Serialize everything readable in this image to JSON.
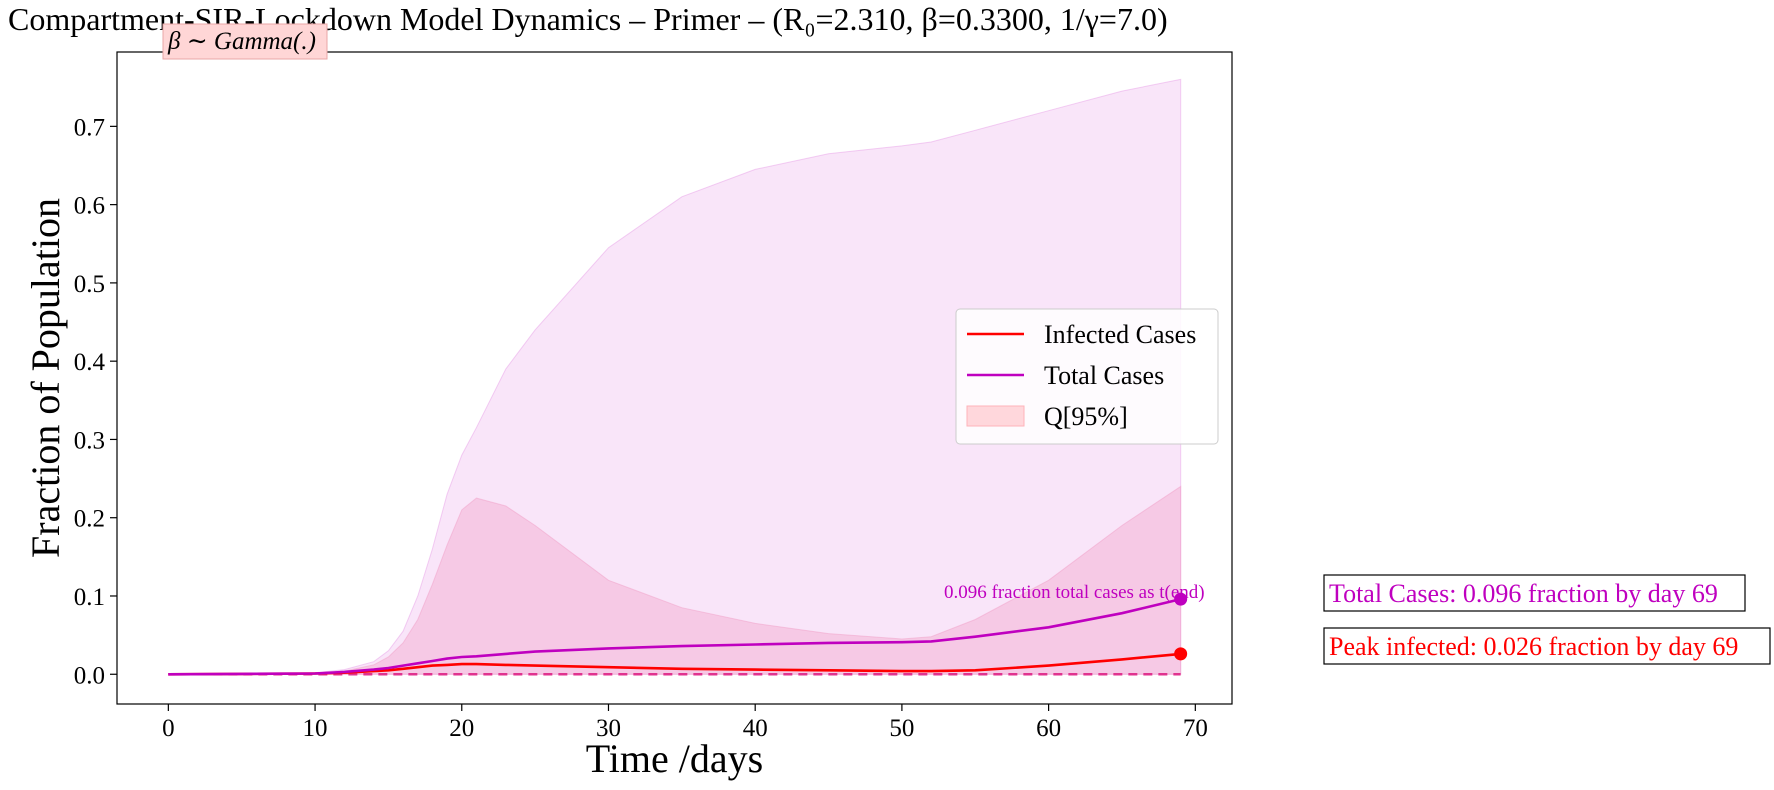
{
  "chart_data": {
    "type": "line",
    "title": "Compartment-SIR-Lockdown Model Dynamics – Primer – (R₀=2.310, β=0.3300, 1/γ=7.0)",
    "distribution_label": "β ∼ Gamma(.)",
    "xlabel": "Time /days",
    "ylabel": "Fraction of Population",
    "xlim": [
      -3.5,
      72.5
    ],
    "ylim": [
      -0.038,
      0.795
    ],
    "x_ticks": [
      0,
      10,
      20,
      30,
      40,
      50,
      60,
      70
    ],
    "x_tick_labels": [
      "0",
      "10",
      "20",
      "30",
      "40",
      "50",
      "60",
      "70"
    ],
    "y_ticks": [
      0.0,
      0.1,
      0.2,
      0.3,
      0.4,
      0.5,
      0.6,
      0.7
    ],
    "y_tick_labels": [
      "0.0",
      "0.1",
      "0.2",
      "0.3",
      "0.4",
      "0.5",
      "0.6",
      "0.7"
    ],
    "grid": false,
    "legend_position": "center-right",
    "legend": [
      {
        "label": "Infected Cases",
        "kind": "line",
        "color": "#ff0000"
      },
      {
        "label": "Total Cases",
        "kind": "line",
        "color": "#bf00bf"
      },
      {
        "label": "Q[95%]",
        "kind": "patch",
        "color": "#ffb3ba"
      }
    ],
    "x": [
      0,
      5,
      10,
      12,
      14,
      15,
      16,
      17,
      18,
      19,
      20,
      21,
      23,
      25,
      30,
      35,
      40,
      45,
      50,
      52,
      55,
      60,
      65,
      69
    ],
    "series": [
      {
        "name": "Infected Cases",
        "color": "#ff0000",
        "values": [
          0.0,
          0.0005,
          0.001,
          0.002,
          0.004,
          0.005,
          0.007,
          0.009,
          0.011,
          0.012,
          0.013,
          0.013,
          0.012,
          0.011,
          0.009,
          0.007,
          0.006,
          0.005,
          0.004,
          0.004,
          0.005,
          0.011,
          0.019,
          0.026
        ]
      },
      {
        "name": "Total Cases",
        "color": "#bf00bf",
        "values": [
          0.0,
          0.0005,
          0.001,
          0.003,
          0.006,
          0.008,
          0.011,
          0.014,
          0.017,
          0.02,
          0.022,
          0.023,
          0.026,
          0.029,
          0.033,
          0.036,
          0.038,
          0.04,
          0.041,
          0.042,
          0.048,
          0.06,
          0.078,
          0.096
        ]
      }
    ],
    "bands": [
      {
        "name": "Total Cases 95% quantile",
        "color": "#e8a0e8",
        "lower": [
          0.0,
          0.0,
          0.0,
          0.0,
          0.0,
          0.0,
          0.0,
          0.0,
          0.0,
          0.0,
          0.0,
          0.0,
          0.0,
          0.0,
          0.0,
          0.0,
          0.0,
          0.0,
          0.0,
          0.0,
          0.0,
          0.0,
          0.0,
          0.0
        ],
        "upper": [
          0.0,
          0.0005,
          0.002,
          0.006,
          0.016,
          0.03,
          0.055,
          0.1,
          0.16,
          0.23,
          0.28,
          0.315,
          0.39,
          0.44,
          0.545,
          0.61,
          0.645,
          0.665,
          0.675,
          0.68,
          0.695,
          0.72,
          0.745,
          0.76
        ]
      },
      {
        "name": "Infected Cases 95% quantile",
        "color": "#f2a0c8",
        "lower": [
          0.0,
          0.0,
          0.0,
          0.0,
          0.0,
          0.0,
          0.0,
          0.0,
          0.0,
          0.0,
          0.0,
          0.0,
          0.0,
          0.0,
          0.0,
          0.0,
          0.0,
          0.0,
          0.0,
          0.0,
          0.0,
          0.0,
          0.0,
          0.0
        ],
        "upper": [
          0.0,
          0.0005,
          0.001,
          0.004,
          0.012,
          0.022,
          0.04,
          0.07,
          0.115,
          0.165,
          0.21,
          0.225,
          0.215,
          0.19,
          0.12,
          0.085,
          0.065,
          0.052,
          0.045,
          0.048,
          0.07,
          0.12,
          0.19,
          0.24
        ]
      }
    ],
    "baseline": {
      "y": 0.0,
      "style": "dashed",
      "color": "#e0338f"
    },
    "end_markers": [
      {
        "series": "Total Cases",
        "x": 69,
        "y": 0.096,
        "color": "#bf00bf"
      },
      {
        "series": "Infected Cases",
        "x": 69,
        "y": 0.026,
        "color": "#ff0000"
      }
    ],
    "annotation": {
      "text": "0.096 fraction total cases as t(end)",
      "x": 69,
      "y": 0.096,
      "color": "#bf00bf"
    },
    "side_boxes": [
      {
        "text": "Total Cases: 0.096 fraction by day 69",
        "color": "#bf00bf"
      },
      {
        "text": "Peak infected: 0.026 fraction by day 69",
        "color": "#ff0000"
      }
    ]
  }
}
